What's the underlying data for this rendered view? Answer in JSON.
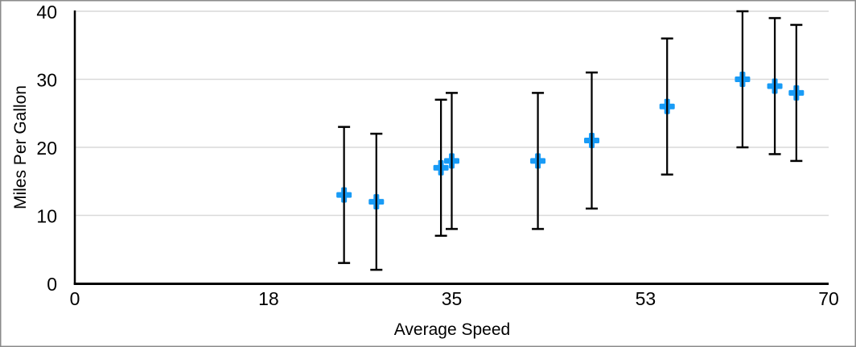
{
  "frame": {
    "background": "#ffffff",
    "border_color": "#8b8b8b"
  },
  "chart_data": {
    "type": "scatter",
    "title": "",
    "xlabel": "Average Speed",
    "ylabel": "Miles Per Gallon",
    "points": [
      {
        "x": 25,
        "y": 13
      },
      {
        "x": 28,
        "y": 12
      },
      {
        "x": 34,
        "y": 17
      },
      {
        "x": 35,
        "y": 18
      },
      {
        "x": 43,
        "y": 18
      },
      {
        "x": 48,
        "y": 21
      },
      {
        "x": 55,
        "y": 26
      },
      {
        "x": 62,
        "y": 30
      },
      {
        "x": 65,
        "y": 29
      },
      {
        "x": 67,
        "y": 28
      }
    ],
    "y_error": 10,
    "xlim": [
      0,
      70
    ],
    "ylim": [
      0,
      40
    ],
    "x_tick_labels": [
      "0",
      "18",
      "35",
      "53",
      "70"
    ],
    "x_tick_values": [
      0,
      18,
      35,
      53,
      70
    ],
    "y_tick_labels": [
      "0",
      "10",
      "20",
      "30",
      "40"
    ],
    "y_tick_values": [
      0,
      10,
      20,
      30,
      40
    ],
    "grid": "horizontal",
    "legend": "none",
    "marker": {
      "shape": "plus",
      "color": "#189bf6",
      "size": 19
    },
    "error_bar": {
      "color": "#000000",
      "line_width": 2.25,
      "cap_width": 15,
      "cap_thickness": 2.5
    },
    "axis_color": "#000000",
    "gridline_color": "#d9d9d9",
    "tick_label_color": "#000000"
  }
}
